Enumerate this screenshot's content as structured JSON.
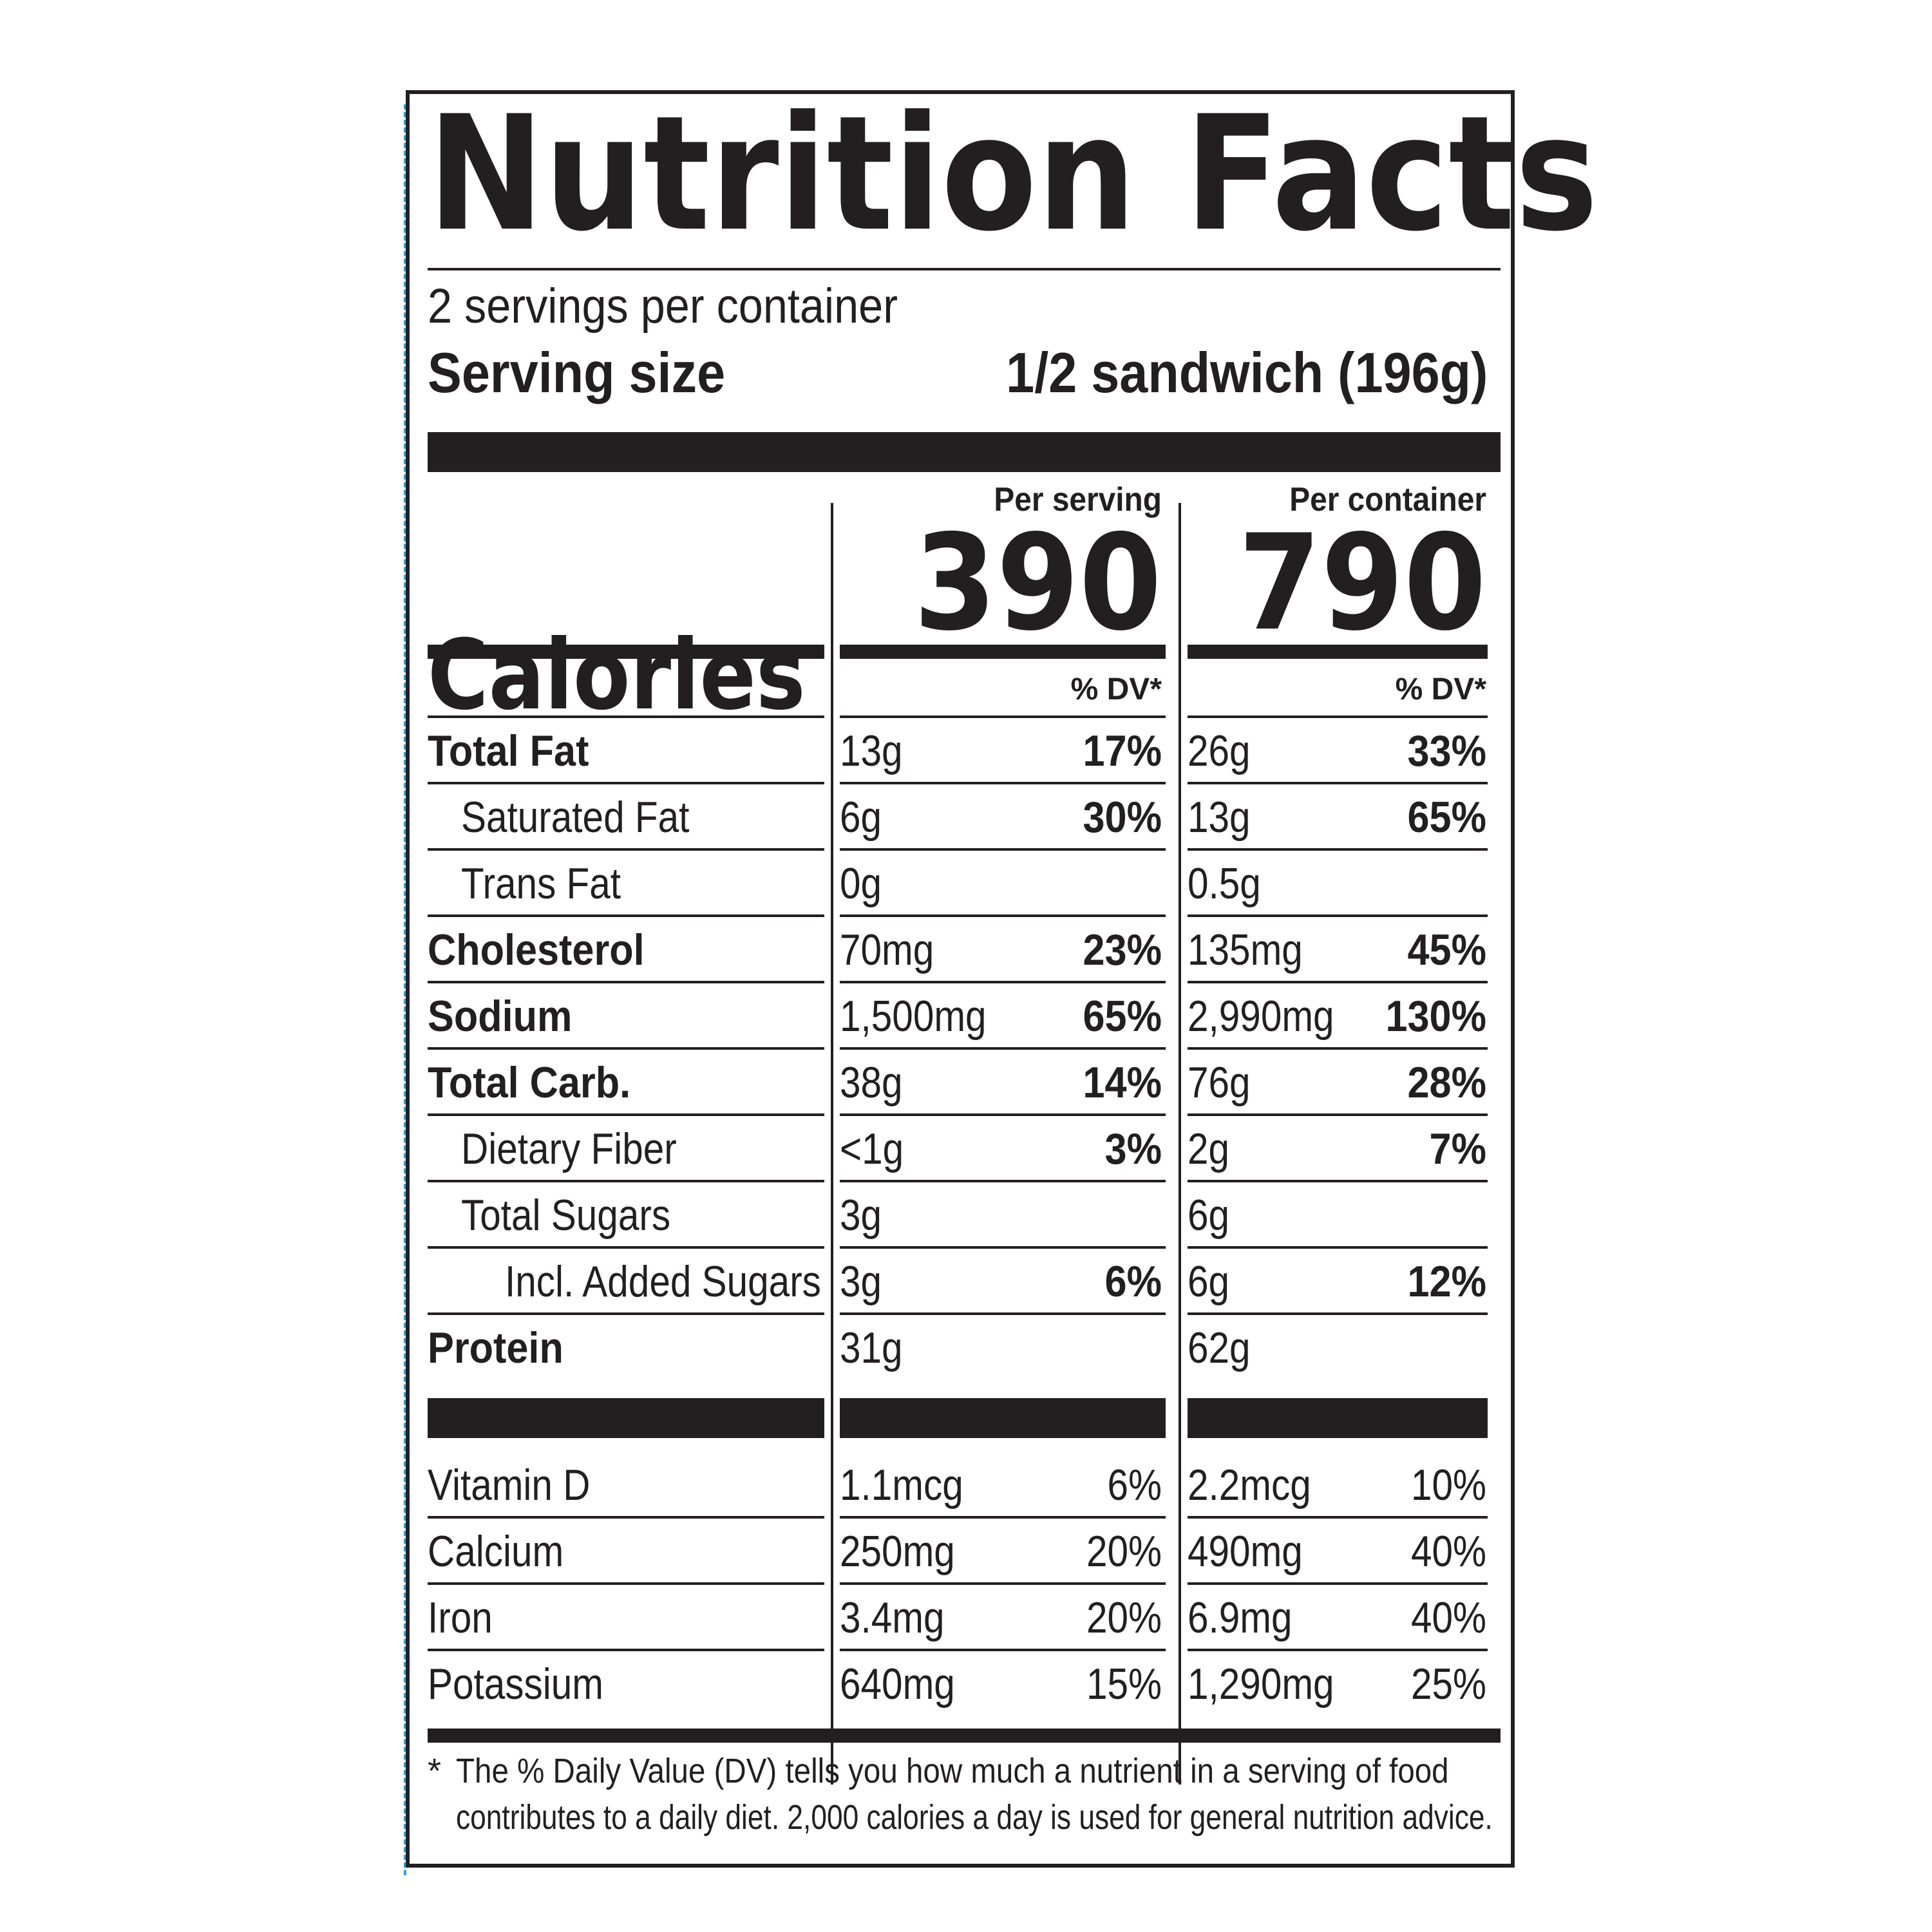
{
  "title": "Nutrition Facts",
  "servings_per_container": "2 servings per container",
  "serving_size_label": "Serving size",
  "serving_size_value": "1/2 sandwich (196g)",
  "per_serving_label": "Per serving",
  "per_container_label": "Per container",
  "calories_label": "Calories",
  "calories_per_serving": "390",
  "calories_per_container": "790",
  "dv_header": "% DV*",
  "nutrients": [
    {
      "name": "Total Fat",
      "s_amt": "13g",
      "s_pct": "17%",
      "c_amt": "26g",
      "c_pct": "33%"
    },
    {
      "name": "Saturated Fat",
      "s_amt": "6g",
      "s_pct": "30%",
      "c_amt": "13g",
      "c_pct": "65%"
    },
    {
      "name": "Trans Fat",
      "s_amt": "0g",
      "s_pct": "",
      "c_amt": "0.5g",
      "c_pct": ""
    },
    {
      "name": "Cholesterol",
      "s_amt": "70mg",
      "s_pct": "23%",
      "c_amt": "135mg",
      "c_pct": "45%"
    },
    {
      "name": "Sodium",
      "s_amt": "1,500mg",
      "s_pct": "65%",
      "c_amt": "2,990mg",
      "c_pct": "130%"
    },
    {
      "name": "Total Carb.",
      "s_amt": "38g",
      "s_pct": "14%",
      "c_amt": "76g",
      "c_pct": "28%"
    },
    {
      "name": "Dietary Fiber",
      "s_amt": "<1g",
      "s_pct": "3%",
      "c_amt": "2g",
      "c_pct": "7%"
    },
    {
      "name": "Total Sugars",
      "s_amt": "3g",
      "s_pct": "",
      "c_amt": "6g",
      "c_pct": ""
    },
    {
      "name": "Incl. Added Sugars",
      "s_amt": "3g",
      "s_pct": "6%",
      "c_amt": "6g",
      "c_pct": "12%"
    },
    {
      "name": "Protein",
      "s_amt": "31g",
      "s_pct": "",
      "c_amt": "62g",
      "c_pct": ""
    }
  ],
  "vitamins": [
    {
      "name": "Vitamin D",
      "s_amt": "1.1mcg",
      "s_pct": "6%",
      "c_amt": "2.2mcg",
      "c_pct": "10%"
    },
    {
      "name": "Calcium",
      "s_amt": "250mg",
      "s_pct": "20%",
      "c_amt": "490mg",
      "c_pct": "40%"
    },
    {
      "name": "Iron",
      "s_amt": "3.4mg",
      "s_pct": "20%",
      "c_amt": "6.9mg",
      "c_pct": "40%"
    },
    {
      "name": "Potassium",
      "s_amt": "640mg",
      "s_pct": "15%",
      "c_amt": "1,290mg",
      "c_pct": "25%"
    }
  ],
  "footnote_star": "*",
  "footnote_line1": "The % Daily Value (DV) tells you how much a nutrient in a serving of food",
  "footnote_line2": "contributes to a daily diet. 2,000 calories a day is used for general nutrition advice."
}
